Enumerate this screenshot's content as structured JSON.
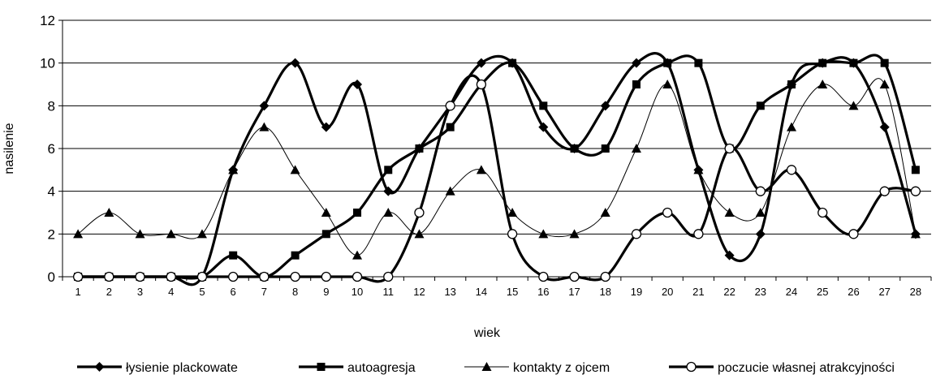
{
  "chart_data": {
    "type": "line",
    "title": "",
    "xlabel": "wiek",
    "ylabel": "nasilenie",
    "ylim": [
      0,
      12
    ],
    "yticks": [
      0,
      2,
      4,
      6,
      8,
      10,
      12
    ],
    "grid": "horizontal",
    "legend_position": "bottom",
    "categories": [
      "1",
      "2",
      "3",
      "4",
      "5",
      "6",
      "7",
      "8",
      "9",
      "10",
      "11",
      "12",
      "13",
      "14",
      "15",
      "16",
      "17",
      "18",
      "19",
      "20",
      "21",
      "22",
      "23",
      "24",
      "25",
      "26",
      "27",
      "28"
    ],
    "series": [
      {
        "name": "łysienie plackowate",
        "marker": "diamond",
        "weight": "thick",
        "values": [
          0,
          0,
          0,
          0,
          0,
          5,
          8,
          10,
          7,
          9,
          4,
          6,
          8,
          10,
          10,
          7,
          6,
          8,
          10,
          10,
          5,
          1,
          2,
          9,
          10,
          10,
          7,
          2
        ]
      },
      {
        "name": "autoagresja",
        "marker": "square",
        "weight": "thick",
        "values": [
          0,
          0,
          0,
          0,
          0,
          1,
          0,
          1,
          2,
          3,
          5,
          6,
          7,
          9,
          10,
          8,
          6,
          6,
          9,
          10,
          10,
          6,
          8,
          9,
          10,
          10,
          10,
          5
        ]
      },
      {
        "name": "kontakty z ojcem",
        "marker": "triangle",
        "weight": "thin",
        "values": [
          2,
          3,
          2,
          2,
          2,
          5,
          7,
          5,
          3,
          1,
          3,
          2,
          4,
          5,
          3,
          2,
          2,
          3,
          6,
          9,
          5,
          3,
          3,
          7,
          9,
          8,
          9,
          2
        ]
      },
      {
        "name": "poczucie własnej atrakcyjności",
        "marker": "circle",
        "weight": "thick",
        "values": [
          0,
          0,
          0,
          0,
          0,
          0,
          0,
          0,
          0,
          0,
          0,
          3,
          8,
          9,
          2,
          0,
          0,
          0,
          2,
          3,
          2,
          6,
          4,
          5,
          3,
          2,
          4,
          4
        ]
      }
    ]
  },
  "legend_labels": [
    "łysienie plackowate",
    "autoagresja",
    "kontakty z ojcem",
    "poczucie własnej atrakcyjności"
  ],
  "axis": {
    "xlabel": "wiek",
    "ylabel": "nasilenie"
  }
}
